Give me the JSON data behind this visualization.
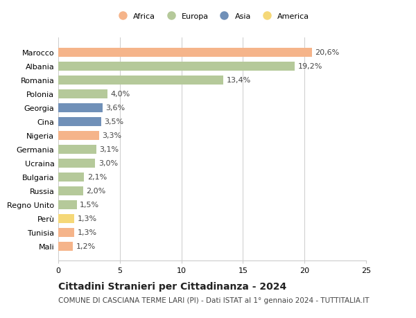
{
  "categories": [
    "Mali",
    "Tunisia",
    "Perù",
    "Regno Unito",
    "Russia",
    "Bulgaria",
    "Ucraina",
    "Germania",
    "Nigeria",
    "Cina",
    "Georgia",
    "Polonia",
    "Romania",
    "Albania",
    "Marocco"
  ],
  "values": [
    1.2,
    1.3,
    1.3,
    1.5,
    2.0,
    2.1,
    3.0,
    3.1,
    3.3,
    3.5,
    3.6,
    4.0,
    13.4,
    19.2,
    20.6
  ],
  "continents": [
    "Africa",
    "Africa",
    "America",
    "Europa",
    "Europa",
    "Europa",
    "Europa",
    "Europa",
    "Africa",
    "Asia",
    "Asia",
    "Europa",
    "Europa",
    "Europa",
    "Africa"
  ],
  "labels": [
    "1,2%",
    "1,3%",
    "1,3%",
    "1,5%",
    "2,0%",
    "2,1%",
    "3,0%",
    "3,1%",
    "3,3%",
    "3,5%",
    "3,6%",
    "4,0%",
    "13,4%",
    "19,2%",
    "20,6%"
  ],
  "colors": {
    "Africa": "#F5B48A",
    "Europa": "#B5C99A",
    "Asia": "#7090B8",
    "America": "#F5D878"
  },
  "legend_order": [
    "Africa",
    "Europa",
    "Asia",
    "America"
  ],
  "legend_colors": [
    "#F5B48A",
    "#B5C99A",
    "#7090B8",
    "#F5D878"
  ],
  "xlim": [
    0,
    25
  ],
  "xticks": [
    0,
    5,
    10,
    15,
    20,
    25
  ],
  "title": "Cittadini Stranieri per Cittadinanza - 2024",
  "subtitle": "COMUNE DI CASCIANA TERME LARI (PI) - Dati ISTAT al 1° gennaio 2024 - TUTTITALIA.IT",
  "background_color": "#ffffff",
  "grid_color": "#cccccc",
  "label_fontsize": 8,
  "tick_fontsize": 8,
  "title_fontsize": 10,
  "subtitle_fontsize": 7.5
}
